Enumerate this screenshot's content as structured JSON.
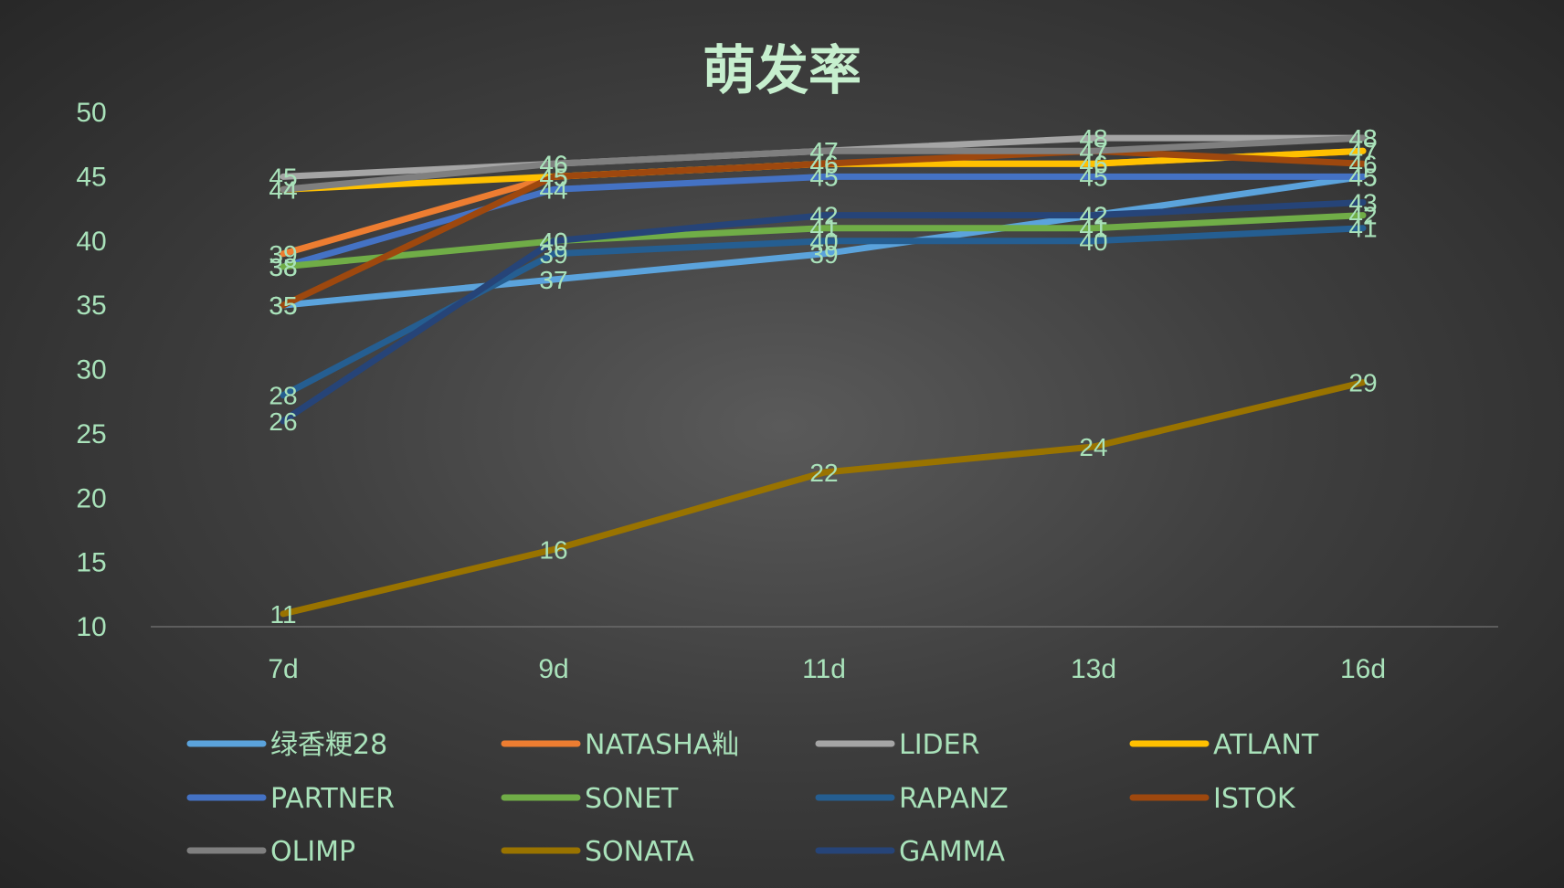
{
  "chart_data": {
    "type": "line",
    "title": "萌发率",
    "xlabel": "",
    "ylabel": "",
    "ylim": [
      10,
      50
    ],
    "yticks": [
      "10",
      "15",
      "20",
      "25",
      "30",
      "35",
      "40",
      "45",
      "50"
    ],
    "categories": [
      "7d",
      "9d",
      "11d",
      "13d",
      "16d"
    ],
    "grid": false,
    "legend_position": "bottom",
    "data_labels": true,
    "series": [
      {
        "name": "绿香粳28",
        "color": "#5ba3dc",
        "values": [
          35,
          37,
          39,
          42,
          45
        ]
      },
      {
        "name": "NATASHA籼",
        "color": "#ed7d31",
        "values": [
          39,
          45,
          46,
          46,
          47
        ]
      },
      {
        "name": "LIDER",
        "color": "#a5a5a5",
        "values": [
          45,
          46,
          47,
          48,
          48
        ]
      },
      {
        "name": "ATLANT",
        "color": "#ffc000",
        "values": [
          44,
          45,
          46,
          46,
          47
        ]
      },
      {
        "name": "PARTNER",
        "color": "#4472c4",
        "values": [
          38,
          44,
          45,
          45,
          45
        ]
      },
      {
        "name": "SONET",
        "color": "#70ad47",
        "values": [
          38,
          40,
          41,
          41,
          42
        ]
      },
      {
        "name": "RAPANZ",
        "color": "#255e91",
        "values": [
          28,
          39,
          40,
          40,
          41
        ]
      },
      {
        "name": "ISTOK",
        "color": "#9e480e",
        "values": [
          35,
          45,
          46,
          47,
          46
        ]
      },
      {
        "name": "OLIMP",
        "color": "#7f7f7f",
        "values": [
          44,
          46,
          47,
          47,
          48
        ]
      },
      {
        "name": "SONATA",
        "color": "#997300",
        "values": [
          11,
          16,
          22,
          24,
          29
        ]
      },
      {
        "name": "GAMMA",
        "color": "#264478",
        "values": [
          26,
          40,
          42,
          42,
          43
        ]
      }
    ]
  }
}
